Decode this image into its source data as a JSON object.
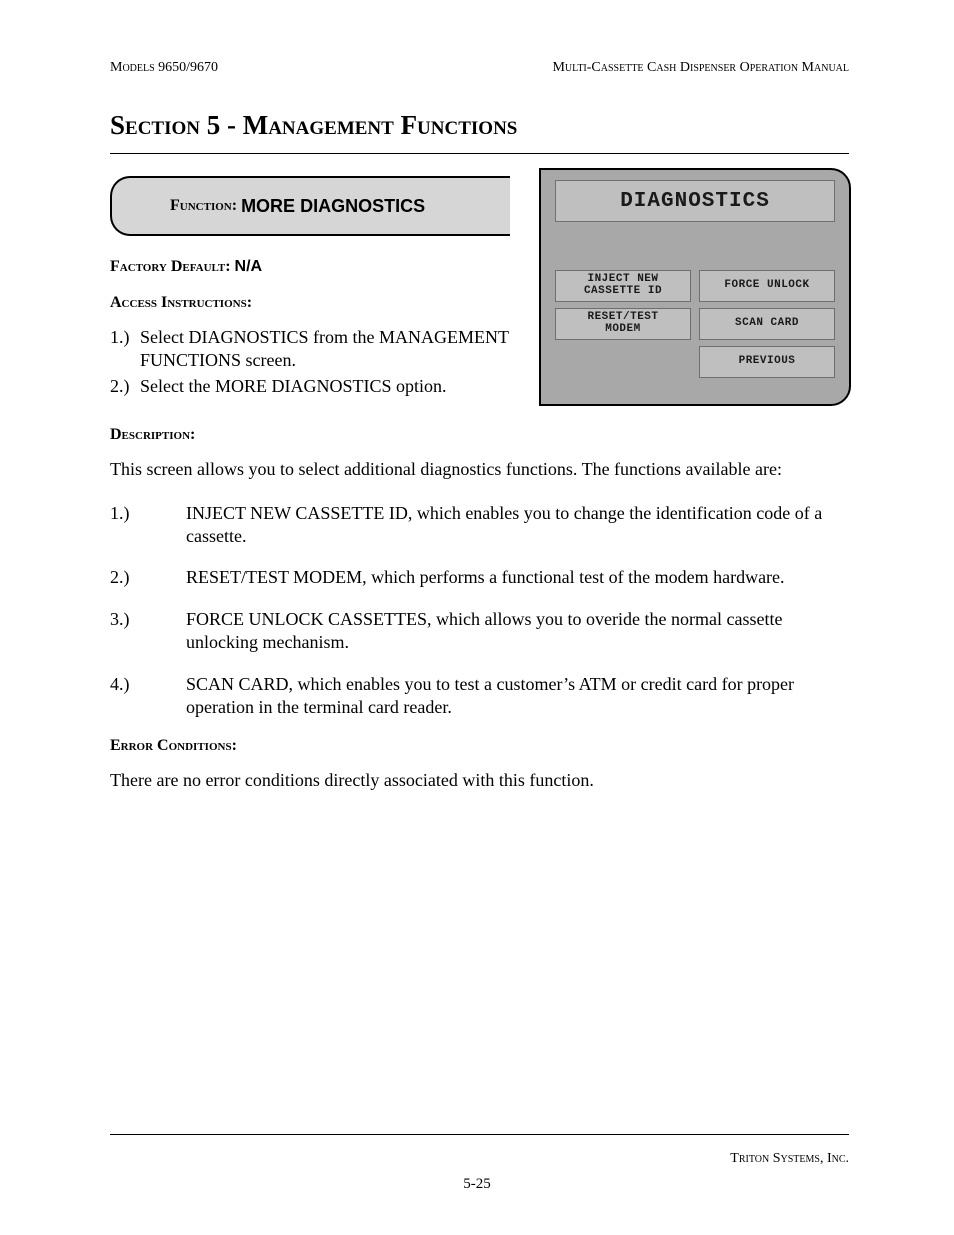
{
  "header": {
    "left": "Models 9650/9670",
    "right": "Multi-Cassette Cash Dispenser Operation Manual"
  },
  "section_title": "Section 5 - Management Functions",
  "function_box": {
    "label": "Function:",
    "name": "MORE DIAGNOSTICS"
  },
  "factory_default": {
    "label": "Factory Default:",
    "value": "N/A"
  },
  "access": {
    "heading": "Access Instructions:",
    "items": [
      {
        "num": "1.)",
        "text": "Select DIAGNOSTICS from the MANAGE­MENT FUNCTIONS screen."
      },
      {
        "num": "2.)",
        "text": "Select the MORE DIAGNOSTICS option."
      }
    ]
  },
  "description": {
    "heading": "Description:",
    "intro": "This screen allows you to select additional diagnostics functions.  The functions available are:",
    "items": [
      {
        "num": "1.)",
        "text": "INJECT NEW CASSETTE ID, which enables you to change the identification code of a cassette."
      },
      {
        "num": "2.)",
        "text": "RESET/TEST MODEM, which performs a functional test of the modem hardware."
      },
      {
        "num": "3.)",
        "text": "FORCE UNLOCK CASSETTES, which allows you to overide the normal cassette unlocking mechanism."
      },
      {
        "num": "4.)",
        "text": "SCAN CARD, which enables you to test a customer’s ATM or credit card for proper operation in the terminal card reader."
      }
    ]
  },
  "error": {
    "heading": "Error Conditions:",
    "text": "There are no error conditions directly associated with this function."
  },
  "atm": {
    "title": "DIAGNOSTICS",
    "buttons": {
      "r1c1": "INJECT NEW\nCASSETTE ID",
      "r1c2": "FORCE UNLOCK",
      "r2c1": "RESET/TEST\nMODEM",
      "r2c2": "SCAN CARD",
      "r3c2": "PREVIOUS"
    },
    "colors": {
      "panel_bg": "#a8a8a8",
      "button_bg": "#bfbfbf",
      "border": "#000000",
      "text": "#1a1a1a"
    }
  },
  "footer": {
    "company": "Triton Systems, Inc.",
    "page": "5-25"
  }
}
